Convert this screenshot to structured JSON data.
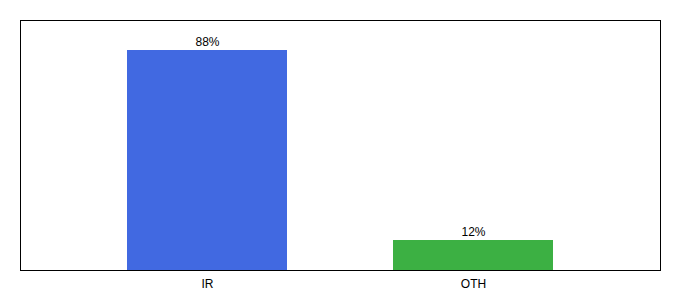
{
  "chart_data": {
    "type": "bar",
    "categories": [
      "IR",
      "OTH"
    ],
    "values": [
      88,
      12
    ],
    "value_labels": [
      "88%",
      "12%"
    ],
    "colors": [
      "#4169e1",
      "#3cb043"
    ],
    "data_labels": true,
    "ylim": [
      0,
      100
    ],
    "tick_labels": "x"
  }
}
